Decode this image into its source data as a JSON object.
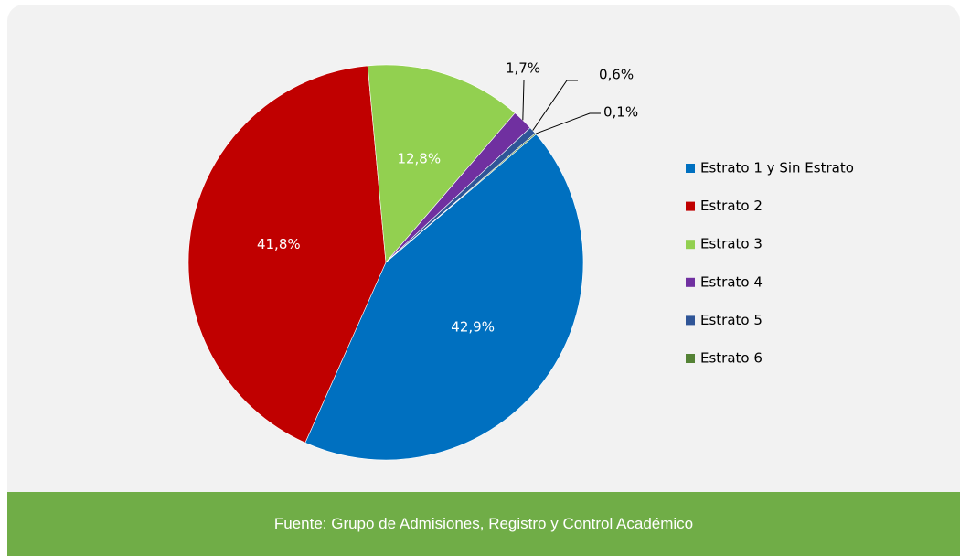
{
  "chart_data": {
    "type": "pie",
    "categories": [
      "Estrato 1 y Sin Estrato",
      "Estrato 2",
      "Estrato 3",
      "Estrato 4",
      "Estrato 5",
      "Estrato 6"
    ],
    "values": [
      42.9,
      41.8,
      12.8,
      1.7,
      0.6,
      0.1
    ],
    "value_labels": [
      "42,9%",
      "41,8%",
      "12,8%",
      "1,7%",
      "0,6%",
      "0,1%"
    ],
    "colors": [
      "#0070c0",
      "#c00000",
      "#92d050",
      "#7030a0",
      "#2f5597",
      "#548235"
    ],
    "legend": "right"
  },
  "footer": "Fuente: Grupo de Admisiones, Registro y Control Académico"
}
